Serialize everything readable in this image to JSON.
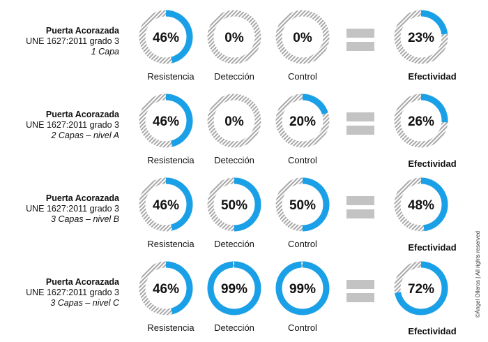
{
  "colors": {
    "fill": "#1aa0e6",
    "track_stripe": "#a8a8a8",
    "track_bg": "#ffffff",
    "equals": "#c3c3c3"
  },
  "icons": {
    "equals": "equals-sign-icon"
  },
  "copyright": {
    "symbol": "©",
    "text": "©Ángel Olleros | All rights reserved"
  },
  "chart_data": {
    "type": "donut-grid",
    "metrics": [
      "Resistencia",
      "Detección",
      "Control"
    ],
    "result_label": "Efectividad",
    "rows": [
      {
        "title": "Puerta Acorazada",
        "standard": "UNE 1627:2011 grado 3",
        "level": "1 Capa",
        "values": [
          46,
          0,
          0
        ],
        "result": 23,
        "value_labels": [
          "46%",
          "0%",
          "0%"
        ],
        "result_label": "23%"
      },
      {
        "title": "Puerta Acorazada",
        "standard": "UNE 1627:2011 grado 3",
        "level": "2 Capas – nivel A",
        "values": [
          46,
          0,
          20
        ],
        "result": 26,
        "value_labels": [
          "46%",
          "0%",
          "20%"
        ],
        "result_label": "26%"
      },
      {
        "title": "Puerta Acorazada",
        "standard": "UNE 1627:2011 grado 3",
        "level": "3 Capas – nivel B",
        "values": [
          46,
          50,
          50
        ],
        "result": 48,
        "value_labels": [
          "46%",
          "50%",
          "50%"
        ],
        "result_label": "48%"
      },
      {
        "title": "Puerta Acorazada",
        "standard": "UNE 1627:2011 grado 3",
        "level": "3 Capas – nivel C",
        "values": [
          46,
          99,
          99
        ],
        "result": 72,
        "value_labels": [
          "46%",
          "99%",
          "99%"
        ],
        "result_label": "72%"
      }
    ]
  }
}
